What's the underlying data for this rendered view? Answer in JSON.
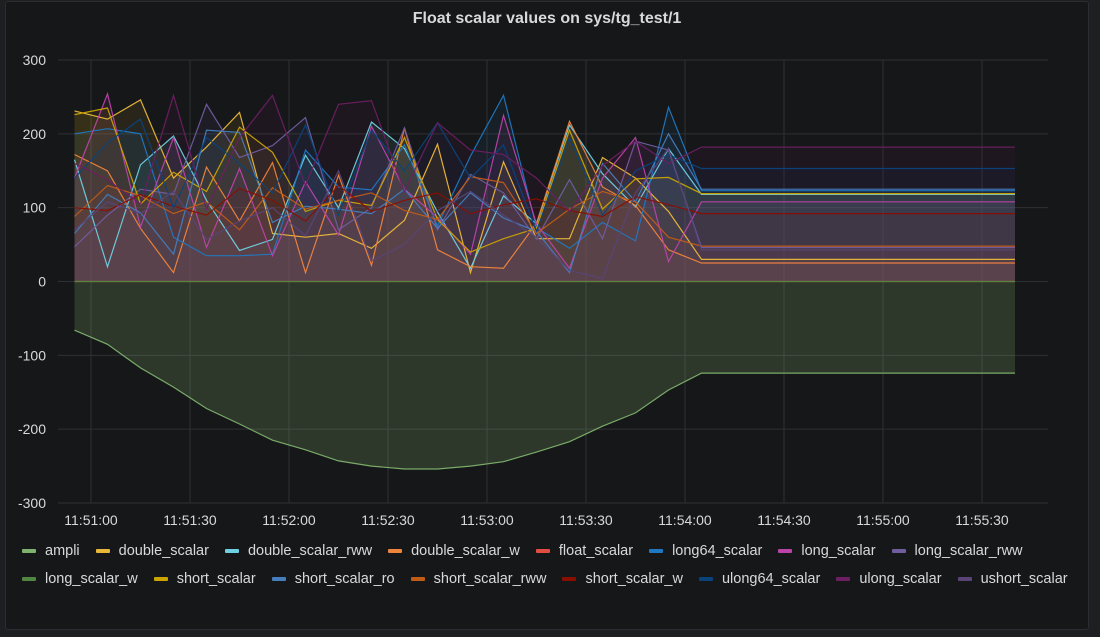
{
  "panel": {
    "title": "Float scalar values on sys/tg_test/1"
  },
  "chart_data": {
    "type": "area",
    "title": "Float scalar values on sys/tg_test/1",
    "ylim": [
      -300,
      300
    ],
    "yticks": [
      300,
      200,
      100,
      0,
      -100,
      -200,
      -300
    ],
    "x": [
      "11:50:55",
      "11:51:05",
      "11:51:15",
      "11:51:25",
      "11:51:35",
      "11:51:45",
      "11:51:55",
      "11:52:05",
      "11:52:15",
      "11:52:25",
      "11:52:35",
      "11:52:45",
      "11:52:55",
      "11:53:05",
      "11:53:15",
      "11:53:25",
      "11:53:35",
      "11:53:45",
      "11:53:55",
      "11:54:05",
      "11:54:15",
      "11:54:25",
      "11:54:35",
      "11:54:45",
      "11:54:55",
      "11:55:05",
      "11:55:15",
      "11:55:25",
      "11:55:40"
    ],
    "xlim": [
      "11:50:50",
      "11:55:50"
    ],
    "xticks": [
      "11:51:00",
      "11:51:30",
      "11:52:00",
      "11:52:30",
      "11:53:00",
      "11:53:30",
      "11:54:00",
      "11:54:30",
      "11:55:00",
      "11:55:30"
    ],
    "grid": true,
    "legend_position": "bottom",
    "series": [
      {
        "name": "ampli",
        "color": "#7eb26d",
        "values": [
          -66,
          -85,
          -117,
          -143,
          -172,
          -193,
          -215,
          -228,
          -243,
          -250,
          -254,
          -254,
          -250,
          -244,
          -231,
          -217,
          -196,
          -178,
          -147,
          -124,
          -124,
          -124,
          -124,
          -124,
          -124,
          -124,
          -124,
          -124,
          -124
        ]
      },
      {
        "name": "double_scalar",
        "color": "#eab839",
        "values": [
          231,
          220,
          246,
          140,
          182,
          229,
          65,
          60,
          65,
          45,
          83,
          186,
          12,
          162,
          58,
          58,
          168,
          140,
          95,
          30,
          30,
          30,
          30,
          30,
          30,
          30,
          30,
          30,
          30
        ]
      },
      {
        "name": "double_scalar_rww",
        "color": "#6ed0e0",
        "values": [
          165,
          20,
          158,
          197,
          110,
          42,
          57,
          171,
          100,
          216,
          180,
          94,
          18,
          116,
          78,
          212,
          146,
          101,
          180,
          118,
          118,
          118,
          118,
          118,
          118,
          118,
          118,
          118,
          118
        ]
      },
      {
        "name": "double_scalar_w",
        "color": "#ef843c",
        "values": [
          172,
          150,
          72,
          12,
          155,
          82,
          161,
          12,
          144,
          22,
          208,
          43,
          20,
          18,
          79,
          217,
          128,
          103,
          43,
          25,
          25,
          25,
          25,
          25,
          25,
          25,
          25,
          25,
          25
        ]
      },
      {
        "name": "float_scalar",
        "color": "#e24d42",
        "values": [
          0,
          0,
          0,
          0,
          0,
          0,
          0,
          0,
          0,
          0,
          0,
          0,
          0,
          0,
          0,
          0,
          0,
          0,
          0,
          0,
          0,
          0,
          0,
          0,
          0,
          0,
          0,
          0,
          0
        ]
      },
      {
        "name": "long64_scalar",
        "color": "#1f78c1",
        "values": [
          200,
          207,
          200,
          60,
          35,
          35,
          37,
          178,
          128,
          124,
          185,
          75,
          170,
          252,
          73,
          45,
          80,
          55,
          236,
          123,
          123,
          123,
          123,
          123,
          123,
          123,
          123,
          123,
          123
        ]
      },
      {
        "name": "long_scalar",
        "color": "#ba43a9",
        "values": [
          140,
          254,
          74,
          195,
          46,
          153,
          35,
          135,
          63,
          210,
          125,
          87,
          37,
          225,
          78,
          18,
          140,
          195,
          27,
          108,
          108,
          108,
          108,
          108,
          108,
          108,
          108,
          108,
          108
        ]
      },
      {
        "name": "long_scalar_rww",
        "color": "#705da0",
        "values": [
          47,
          90,
          125,
          118,
          240,
          168,
          184,
          222,
          70,
          100,
          208,
          70,
          145,
          120,
          58,
          138,
          58,
          190,
          178,
          46,
          46,
          46,
          46,
          46,
          46,
          46,
          46,
          46,
          46
        ]
      },
      {
        "name": "long_scalar_w",
        "color": "#508642",
        "values": [
          0,
          0,
          0,
          0,
          0,
          0,
          0,
          0,
          0,
          0,
          0,
          0,
          0,
          0,
          0,
          0,
          0,
          0,
          0,
          0,
          0,
          0,
          0,
          0,
          0,
          0,
          0,
          0,
          0
        ]
      },
      {
        "name": "short_scalar",
        "color": "#cca300",
        "values": [
          226,
          235,
          105,
          148,
          122,
          209,
          175,
          95,
          110,
          103,
          195,
          84,
          40,
          58,
          72,
          205,
          98,
          139,
          141,
          119,
          119,
          119,
          119,
          119,
          119,
          119,
          119,
          119,
          119
        ]
      },
      {
        "name": "short_scalar_ro",
        "color": "#447ebc",
        "values": [
          65,
          118,
          93,
          37,
          205,
          202,
          80,
          102,
          98,
          92,
          125,
          72,
          120,
          86,
          68,
          12,
          160,
          108,
          200,
          125,
          125,
          125,
          125,
          125,
          125,
          125,
          125,
          125,
          125
        ]
      },
      {
        "name": "short_scalar_rww",
        "color": "#c15c17",
        "values": [
          88,
          130,
          116,
          92,
          108,
          70,
          127,
          98,
          110,
          120,
          96,
          84,
          142,
          134,
          65,
          98,
          122,
          108,
          60,
          48,
          48,
          48,
          48,
          48,
          48,
          48,
          48,
          48,
          48
        ]
      },
      {
        "name": "short_scalar_w",
        "color": "#890f02",
        "values": [
          100,
          96,
          118,
          102,
          90,
          126,
          110,
          82,
          130,
          95,
          110,
          120,
          92,
          104,
          112,
          96,
          88,
          115,
          104,
          92,
          92,
          92,
          92,
          92,
          92,
          92,
          92,
          92,
          92
        ]
      },
      {
        "name": "ulong64_scalar",
        "color": "#0a437c",
        "values": [
          140,
          188,
          220,
          100,
          195,
          160,
          120,
          212,
          90,
          205,
          150,
          215,
          140,
          185,
          68,
          195,
          90,
          150,
          172,
          153,
          153,
          153,
          153,
          153,
          153,
          153,
          153,
          153,
          153
        ]
      },
      {
        "name": "ulong_scalar",
        "color": "#6d1f62",
        "values": [
          160,
          138,
          105,
          252,
          98,
          195,
          252,
          130,
          240,
          245,
          122,
          215,
          178,
          172,
          140,
          95,
          157,
          190,
          160,
          182,
          182,
          182,
          182,
          182,
          182,
          182,
          182,
          182,
          182
        ]
      },
      {
        "name": "ushort_scalar",
        "color": "#584477",
        "values": [
          70,
          108,
          92,
          122,
          57,
          82,
          100,
          62,
          150,
          28,
          50,
          96,
          122,
          90,
          60,
          15,
          4,
          120,
          180,
          43,
          43,
          43,
          43,
          43,
          43,
          43,
          43,
          43,
          43
        ]
      }
    ]
  }
}
